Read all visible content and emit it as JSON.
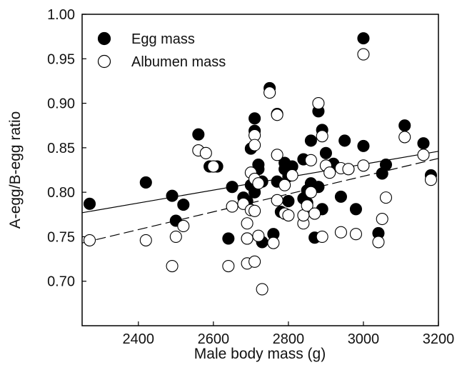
{
  "chart_data": {
    "type": "scatter",
    "xlabel": "Male body mass (g)",
    "ylabel": "A-egg/B-egg ratio",
    "xlim": [
      2250,
      3200
    ],
    "ylim": [
      0.65,
      1.0
    ],
    "x_ticks": [
      "2400",
      "2600",
      "2800",
      "3000",
      "3200"
    ],
    "y_ticks": [
      "0.70",
      "0.75",
      "0.80",
      "0.85",
      "0.90",
      "0.95",
      "1.00"
    ],
    "legend_position": "top-left",
    "series": [
      {
        "name": "Egg mass",
        "marker": "filled-circle",
        "color": "#000000",
        "fit_line": {
          "style": "solid",
          "x": [
            2250,
            3200
          ],
          "y": [
            0.777,
            0.846
          ]
        },
        "points": [
          [
            2270,
            0.787
          ],
          [
            2420,
            0.811
          ],
          [
            2490,
            0.796
          ],
          [
            2500,
            0.768
          ],
          [
            2520,
            0.786
          ],
          [
            2560,
            0.865
          ],
          [
            2590,
            0.829
          ],
          [
            2610,
            0.829
          ],
          [
            2640,
            0.748
          ],
          [
            2650,
            0.806
          ],
          [
            2680,
            0.794
          ],
          [
            2690,
            0.748
          ],
          [
            2690,
            0.79
          ],
          [
            2700,
            0.849
          ],
          [
            2700,
            0.808
          ],
          [
            2710,
            0.883
          ],
          [
            2710,
            0.869
          ],
          [
            2710,
            0.8
          ],
          [
            2720,
            0.831
          ],
          [
            2720,
            0.826
          ],
          [
            2730,
            0.744
          ],
          [
            2730,
            0.812
          ],
          [
            2750,
            0.917
          ],
          [
            2760,
            0.753
          ],
          [
            2770,
            0.888
          ],
          [
            2770,
            0.812
          ],
          [
            2780,
            0.778
          ],
          [
            2790,
            0.833
          ],
          [
            2790,
            0.826
          ],
          [
            2800,
            0.79
          ],
          [
            2800,
            0.818
          ],
          [
            2810,
            0.829
          ],
          [
            2840,
            0.837
          ],
          [
            2840,
            0.793
          ],
          [
            2850,
            0.802
          ],
          [
            2850,
            0.788
          ],
          [
            2860,
            0.858
          ],
          [
            2860,
            0.81
          ],
          [
            2870,
            0.749
          ],
          [
            2880,
            0.891
          ],
          [
            2880,
            0.806
          ],
          [
            2890,
            0.781
          ],
          [
            2890,
            0.87
          ],
          [
            2900,
            0.844
          ],
          [
            2920,
            0.832
          ],
          [
            2940,
            0.795
          ],
          [
            2950,
            0.858
          ],
          [
            2960,
            0.826
          ],
          [
            2980,
            0.781
          ],
          [
            3000,
            0.852
          ],
          [
            3000,
            0.973
          ],
          [
            3040,
            0.754
          ],
          [
            3050,
            0.821
          ],
          [
            3060,
            0.831
          ],
          [
            3110,
            0.875
          ],
          [
            3160,
            0.855
          ],
          [
            3180,
            0.819
          ]
        ]
      },
      {
        "name": "Albumen mass",
        "marker": "open-circle",
        "color": "#000000",
        "fit_line": {
          "style": "dashed",
          "x": [
            2250,
            3200
          ],
          "y": [
            0.743,
            0.838
          ]
        },
        "points": [
          [
            2270,
            0.746
          ],
          [
            2420,
            0.746
          ],
          [
            2490,
            0.717
          ],
          [
            2500,
            0.75
          ],
          [
            2520,
            0.762
          ],
          [
            2560,
            0.847
          ],
          [
            2580,
            0.844
          ],
          [
            2600,
            0.829
          ],
          [
            2640,
            0.717
          ],
          [
            2650,
            0.784
          ],
          [
            2680,
            0.787
          ],
          [
            2690,
            0.765
          ],
          [
            2690,
            0.72
          ],
          [
            2690,
            0.748
          ],
          [
            2700,
            0.822
          ],
          [
            2700,
            0.78
          ],
          [
            2710,
            0.864
          ],
          [
            2710,
            0.853
          ],
          [
            2710,
            0.815
          ],
          [
            2710,
            0.779
          ],
          [
            2710,
            0.722
          ],
          [
            2720,
            0.751
          ],
          [
            2720,
            0.81
          ],
          [
            2730,
            0.691
          ],
          [
            2750,
            0.912
          ],
          [
            2760,
            0.743
          ],
          [
            2770,
            0.887
          ],
          [
            2770,
            0.842
          ],
          [
            2770,
            0.791
          ],
          [
            2790,
            0.808
          ],
          [
            2790,
            0.776
          ],
          [
            2800,
            0.774
          ],
          [
            2810,
            0.819
          ],
          [
            2840,
            0.765
          ],
          [
            2840,
            0.774
          ],
          [
            2850,
            0.785
          ],
          [
            2860,
            0.836
          ],
          [
            2860,
            0.8
          ],
          [
            2870,
            0.776
          ],
          [
            2880,
            0.9
          ],
          [
            2890,
            0.863
          ],
          [
            2890,
            0.75
          ],
          [
            2900,
            0.83
          ],
          [
            2910,
            0.822
          ],
          [
            2940,
            0.827
          ],
          [
            2940,
            0.755
          ],
          [
            2960,
            0.826
          ],
          [
            2980,
            0.753
          ],
          [
            3000,
            0.955
          ],
          [
            3000,
            0.83
          ],
          [
            3040,
            0.744
          ],
          [
            3050,
            0.77
          ],
          [
            3060,
            0.794
          ],
          [
            3110,
            0.862
          ],
          [
            3160,
            0.842
          ],
          [
            3180,
            0.814
          ]
        ]
      }
    ]
  }
}
